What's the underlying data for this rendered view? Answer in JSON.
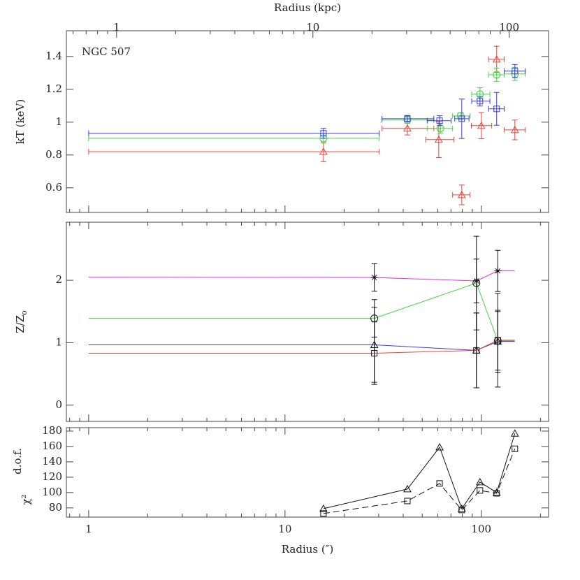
{
  "chart_data": [
    {
      "type": "errorbar",
      "annotation": "NGC 507",
      "ylabel": "kT (keV)",
      "x2label": "Radius (kpc)",
      "xscale": "log",
      "xlim": [
        0.77,
        220
      ],
      "x2lim": [
        0.555,
        158.6
      ],
      "xticks": [
        1,
        10,
        100
      ],
      "xticks_minor": [
        0.8,
        0.9,
        2,
        3,
        4,
        5,
        6,
        7,
        8,
        9,
        20,
        30,
        40,
        50,
        60,
        70,
        80,
        90,
        200
      ],
      "x2ticks": [
        1,
        10,
        100
      ],
      "x2ticks_minor": [
        0.6,
        0.7,
        0.8,
        0.9,
        2,
        3,
        4,
        5,
        6,
        7,
        8,
        9,
        20,
        30,
        40,
        50,
        60,
        70,
        80,
        90
      ],
      "ylim": [
        0.45,
        1.557
      ],
      "yticks": [
        0.6,
        0.8,
        1,
        1.2,
        1.4
      ],
      "series": [
        {
          "color": "#e8443a",
          "marker": "triangle",
          "x": [
            15.7,
            42.0,
            60.7,
            79.5,
            100,
            119.7,
            148.2
          ],
          "values": [
            0.82,
            0.962,
            0.894,
            0.557,
            0.979,
            1.383,
            0.953
          ],
          "xlo": [
            1,
            31.2,
            52.2,
            71.4,
            88.9,
            108.9,
            130.8
          ],
          "xhi": [
            30.2,
            57.3,
            72.6,
            87.6,
            113,
            130.8,
            167.5
          ],
          "yerr": [
            0.06,
            0.04,
            0.11,
            0.06,
            0.08,
            0.08,
            0.06
          ]
        },
        {
          "color": "#3ed83e",
          "marker": "circle",
          "x": [
            15.7,
            42.0,
            61.9,
            78.5,
            98.4,
            119.7,
            148.2
          ],
          "values": [
            0.902,
            1.013,
            0.962,
            1.038,
            1.17,
            1.289,
            1.294
          ],
          "xlo": [
            1,
            31.2,
            53,
            71.4,
            89.3,
            108.9,
            130.8
          ],
          "xhi": [
            30.2,
            57.3,
            71.4,
            87.6,
            110.6,
            130.8,
            167.5
          ],
          "yerr": [
            0.03,
            0.02,
            0.03,
            0.02,
            0.04,
            0.04,
            0.04
          ]
        },
        {
          "color": "#3a3ae0",
          "marker": "square",
          "x": [
            15.7,
            42.0,
            61.3,
            79.5,
            98.4,
            119.7,
            148.2
          ],
          "values": [
            0.932,
            1.021,
            1.009,
            1.021,
            1.128,
            1.081,
            1.311
          ],
          "xlo": [
            1,
            31.2,
            53,
            73.2,
            89.3,
            108.9,
            130.8
          ],
          "xhi": [
            30.2,
            57.3,
            70.2,
            86.5,
            110.6,
            130.8,
            167.5
          ],
          "yerr": [
            0.03,
            0.02,
            0.03,
            0.12,
            0.03,
            0.1,
            0.04
          ]
        }
      ]
    },
    {
      "type": "line",
      "ylabel": {
        "main": "Z/Z",
        "sub": "o"
      },
      "xscale": "log",
      "xlim": [
        0.77,
        220
      ],
      "xticks": [
        1,
        10,
        100
      ],
      "xticks_minor": [
        0.8,
        0.9,
        2,
        3,
        4,
        5,
        6,
        7,
        8,
        9,
        20,
        30,
        40,
        50,
        60,
        70,
        80,
        90,
        200
      ],
      "ylim": [
        -0.26,
        2.93
      ],
      "yticks": [
        0,
        1,
        2
      ],
      "errorbar_color": "#111111",
      "series": [
        {
          "color": "#e030e0",
          "marker": "star",
          "x": [
            1,
            28.5,
            94.4,
            121.3,
            148
          ],
          "values": [
            2.05,
            2.045,
            1.99,
            2.15,
            2.15
          ],
          "yerr": [
            null,
            0.22,
            0.35,
            0.33,
            null
          ]
        },
        {
          "color": "#3ed83e",
          "marker": "circle",
          "x": [
            1,
            28.5,
            94.4,
            121.3,
            148
          ],
          "values": [
            1.39,
            1.39,
            1.955,
            1.03,
            1.03
          ],
          "yerr": [
            null,
            0.3,
            0.75,
            0.47,
            null
          ]
        },
        {
          "color": "#3a3ae0",
          "marker": "triangle",
          "x": [
            1,
            28.5,
            94.4,
            121.3,
            148
          ],
          "values": [
            0.966,
            0.966,
            0.877,
            1.02,
            1.02
          ],
          "yerr": [
            null,
            0.6,
            0.6,
            0.5,
            null
          ]
        },
        {
          "color": "#e8443a",
          "marker": "square",
          "x": [
            1,
            28.5,
            94.4,
            121.3,
            148
          ],
          "values": [
            0.832,
            0.832,
            0.877,
            1.04,
            1.04
          ],
          "yerr": [
            null,
            0.5,
            0.6,
            0.75,
            null
          ]
        }
      ]
    },
    {
      "type": "line",
      "ylabel": {
        "main": "χ²",
        "sub": "d.o.f."
      },
      "xlabel": "Radius (″)",
      "xscale": "log",
      "xlim": [
        0.77,
        220
      ],
      "xticks": [
        1,
        10,
        100
      ],
      "xticks_minor": [
        0.8,
        0.9,
        2,
        3,
        4,
        5,
        6,
        7,
        8,
        9,
        20,
        30,
        40,
        50,
        60,
        70,
        80,
        90,
        200
      ],
      "ylim": [
        68,
        184.5
      ],
      "yticks": [
        80,
        100,
        120,
        140,
        160,
        180
      ],
      "series": [
        {
          "color": "#111111",
          "marker": "triangle",
          "dash": false,
          "x": [
            15.7,
            42.0,
            61.3,
            79.5,
            98.4,
            119.7,
            148.2
          ],
          "values": [
            79,
            104.5,
            159,
            79,
            113.6,
            100,
            177
          ]
        },
        {
          "color": "#111111",
          "marker": "square",
          "dash": true,
          "x": [
            15.7,
            42.0,
            61.3,
            79.5,
            98.4,
            119.7,
            148.2
          ],
          "values": [
            72.7,
            89,
            111.8,
            77.3,
            102.7,
            99,
            157
          ]
        }
      ]
    }
  ]
}
